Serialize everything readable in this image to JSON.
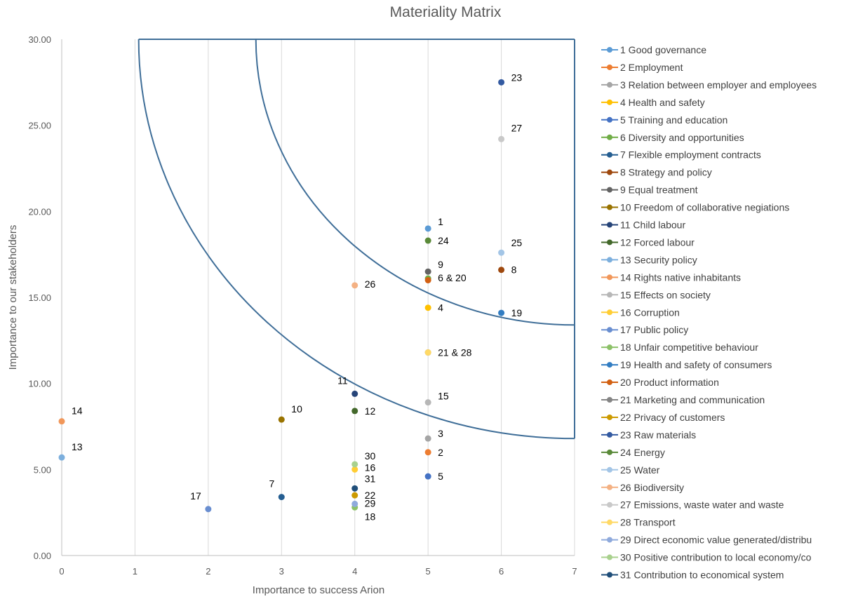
{
  "chart_data": {
    "type": "scatter",
    "title": "Materiality Matrix",
    "xlabel": "Importance to success Arion",
    "ylabel": "Importance to our stakeholders",
    "xlim": [
      0,
      7
    ],
    "ylim": [
      0,
      30
    ],
    "x_ticks": [
      "0",
      "1",
      "2",
      "3",
      "4",
      "5",
      "6",
      "7"
    ],
    "y_ticks": [
      "0.00",
      "5.00",
      "10.00",
      "15.00",
      "20.00",
      "25.00",
      "30.00"
    ],
    "grid": "vertical",
    "legend_position": "right",
    "series": [
      {
        "name": "1 Good governance",
        "color": "#5b9bd5",
        "x": 5,
        "y": 19.0
      },
      {
        "name": "2 Employment",
        "color": "#ed7d31",
        "x": 5,
        "y": 6.0
      },
      {
        "name": "3 Relation between employer and employees",
        "color": "#a5a5a5",
        "x": 5,
        "y": 6.8
      },
      {
        "name": "4 Health and safety",
        "color": "#ffc000",
        "x": 5,
        "y": 14.4
      },
      {
        "name": "5 Training and education",
        "color": "#4472c4",
        "x": 5,
        "y": 4.6
      },
      {
        "name": "6 Diversity and opportunities",
        "color": "#70ad47",
        "x": 5,
        "y": 16.1
      },
      {
        "name": "7 Flexible employment contracts",
        "color": "#255e91",
        "x": 3,
        "y": 3.4
      },
      {
        "name": "8 Strategy and policy",
        "color": "#9e480e",
        "x": 6,
        "y": 16.6
      },
      {
        "name": "9 Equal treatment",
        "color": "#636363",
        "x": 5,
        "y": 16.5
      },
      {
        "name": "10 Freedom of collaborative negiations",
        "color": "#997300",
        "x": 3,
        "y": 7.9
      },
      {
        "name": "11 Child labour",
        "color": "#264478",
        "x": 4,
        "y": 9.4
      },
      {
        "name": "12 Forced labour",
        "color": "#43682b",
        "x": 4,
        "y": 8.4
      },
      {
        "name": "13 Security policy",
        "color": "#7cafdd",
        "x": 0,
        "y": 5.7
      },
      {
        "name": "14 Rights native inhabitants",
        "color": "#f1975a",
        "x": 0,
        "y": 7.8
      },
      {
        "name": "15 Effects on society",
        "color": "#b7b7b7",
        "x": 5,
        "y": 8.9
      },
      {
        "name": "16 Corruption",
        "color": "#ffcd33",
        "x": 4,
        "y": 5.0
      },
      {
        "name": "17 Public policy",
        "color": "#698ed0",
        "x": 2,
        "y": 2.7
      },
      {
        "name": "18 Unfair competitive behaviour",
        "color": "#8cc168",
        "x": 4,
        "y": 2.8
      },
      {
        "name": "19 Health and safety of consumers",
        "color": "#327dc2",
        "x": 6,
        "y": 14.1
      },
      {
        "name": "20 Product information",
        "color": "#d26012",
        "x": 5,
        "y": 16.0
      },
      {
        "name": "21 Marketing and communication",
        "color": "#848484",
        "x": 5,
        "y": 11.8
      },
      {
        "name": "22 Privacy of customers",
        "color": "#cc9a00",
        "x": 4,
        "y": 3.5
      },
      {
        "name": "23 Raw materials",
        "color": "#335aa1",
        "x": 6,
        "y": 27.5
      },
      {
        "name": "24 Energy",
        "color": "#5a8a39",
        "x": 5,
        "y": 18.3
      },
      {
        "name": "25 Water",
        "color": "#a3c5e6",
        "x": 6,
        "y": 17.6
      },
      {
        "name": "26 Biodiversity",
        "color": "#f4b183",
        "x": 4,
        "y": 15.7
      },
      {
        "name": "27 Emissions, waste water and waste",
        "color": "#c9c9c9",
        "x": 6,
        "y": 24.2
      },
      {
        "name": "28 Transport",
        "color": "#ffd966",
        "x": 5,
        "y": 11.8
      },
      {
        "name": "29 Direct economic value generated/distribu",
        "color": "#8faadc",
        "x": 4,
        "y": 3.0
      },
      {
        "name": "30 Positive contribution to local economy/co",
        "color": "#a9d18e",
        "x": 4,
        "y": 5.3
      },
      {
        "name": "31 Contribution to economical system",
        "color": "#1f4e79",
        "x": 4,
        "y": 3.9
      }
    ],
    "annotations": [
      {
        "text": "1",
        "x": 5,
        "y": 19.0
      },
      {
        "text": "24",
        "x": 5,
        "y": 18.3
      },
      {
        "text": "9",
        "x": 5,
        "y": 16.5
      },
      {
        "text": "6 & 20",
        "x": 5,
        "y": 16.1
      },
      {
        "text": "4",
        "x": 5,
        "y": 14.4
      },
      {
        "text": "21 & 28",
        "x": 5,
        "y": 11.8
      },
      {
        "text": "15",
        "x": 5,
        "y": 8.9
      },
      {
        "text": "3",
        "x": 5,
        "y": 6.8
      },
      {
        "text": "2",
        "x": 5,
        "y": 6.0
      },
      {
        "text": "5",
        "x": 5,
        "y": 4.6
      },
      {
        "text": "23",
        "x": 6,
        "y": 27.5
      },
      {
        "text": "27",
        "x": 6,
        "y": 24.2
      },
      {
        "text": "25",
        "x": 6,
        "y": 17.6
      },
      {
        "text": "8",
        "x": 6,
        "y": 16.6
      },
      {
        "text": "19",
        "x": 6,
        "y": 14.1
      },
      {
        "text": "26",
        "x": 4,
        "y": 15.7
      },
      {
        "text": "11",
        "x": 4,
        "y": 9.4
      },
      {
        "text": "12",
        "x": 4,
        "y": 8.4
      },
      {
        "text": "30",
        "x": 4,
        "y": 5.3
      },
      {
        "text": "16",
        "x": 4,
        "y": 5.0
      },
      {
        "text": "31",
        "x": 4,
        "y": 3.9
      },
      {
        "text": "22",
        "x": 4,
        "y": 3.5
      },
      {
        "text": "29",
        "x": 4,
        "y": 3.0
      },
      {
        "text": "18",
        "x": 4,
        "y": 2.8
      },
      {
        "text": "10",
        "x": 3,
        "y": 7.9
      },
      {
        "text": "7",
        "x": 3,
        "y": 3.4
      },
      {
        "text": "17",
        "x": 2,
        "y": 2.7
      },
      {
        "text": "14",
        "x": 0,
        "y": 7.8
      },
      {
        "text": "13",
        "x": 0,
        "y": 5.7
      }
    ],
    "boundaries": [
      {
        "type": "quarter-circle",
        "center": [
          7,
          30
        ],
        "radius_x": 5.95,
        "radius_y": 23.2
      },
      {
        "type": "quarter-circle",
        "center": [
          7,
          30
        ],
        "radius_x": 4.35,
        "radius_y": 16.6
      }
    ]
  }
}
